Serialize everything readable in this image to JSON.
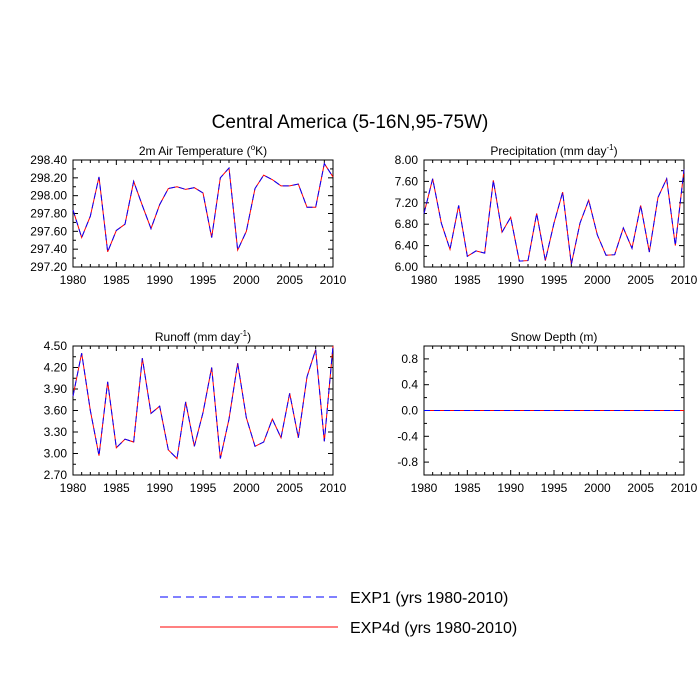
{
  "figure_title": "Central America (5-16N,95-75W)",
  "legend": [
    {
      "label": "EXP1 (yrs 1980-2010)",
      "color": "#0000ff",
      "dash": true
    },
    {
      "label": "EXP4d (yrs 1980-2010)",
      "color": "#ff0000",
      "dash": false
    }
  ],
  "chart_data": [
    {
      "type": "line",
      "title_main": "2m Air Temperature (",
      "title_sup": "o",
      "title_tail": "K)",
      "x": [
        1980,
        1981,
        1982,
        1983,
        1984,
        1985,
        1986,
        1987,
        1988,
        1989,
        1990,
        1991,
        1992,
        1993,
        1994,
        1995,
        1996,
        1997,
        1998,
        1999,
        2000,
        2001,
        2002,
        2003,
        2004,
        2005,
        2006,
        2007,
        2008,
        2009,
        2010
      ],
      "xlim": [
        1980,
        2010
      ],
      "xticks": [
        "1980",
        "1985",
        "1990",
        "1995",
        "2000",
        "2005",
        "2010"
      ],
      "ylim": [
        297.2,
        298.4
      ],
      "yticks": [
        "297.20",
        "297.40",
        "297.60",
        "297.80",
        "298.00",
        "298.20",
        "298.40"
      ],
      "series": [
        {
          "name": "EXP1 (yrs 1980-2010)",
          "values": [
            297.84,
            297.53,
            297.77,
            298.21,
            297.37,
            297.61,
            297.68,
            298.16,
            297.89,
            297.63,
            297.9,
            298.08,
            298.1,
            298.07,
            298.09,
            298.03,
            297.53,
            298.2,
            298.31,
            297.39,
            297.6,
            298.08,
            298.23,
            298.18,
            298.11,
            298.11,
            298.13,
            297.87,
            297.87,
            298.36,
            298.21
          ]
        },
        {
          "name": "EXP4d (yrs 1980-2010)",
          "values": [
            297.84,
            297.53,
            297.77,
            298.21,
            297.37,
            297.61,
            297.68,
            298.16,
            297.89,
            297.63,
            297.9,
            298.08,
            298.1,
            298.07,
            298.09,
            298.03,
            297.53,
            298.2,
            298.31,
            297.39,
            297.6,
            298.08,
            298.23,
            298.18,
            298.11,
            298.11,
            298.13,
            297.87,
            297.87,
            298.36,
            298.21
          ]
        }
      ]
    },
    {
      "type": "line",
      "title_main": "Precipitation (mm day",
      "title_sup": "-1",
      "title_tail": ")",
      "x": [
        1980,
        1981,
        1982,
        1983,
        1984,
        1985,
        1986,
        1987,
        1988,
        1989,
        1990,
        1991,
        1992,
        1993,
        1994,
        1995,
        1996,
        1997,
        1998,
        1999,
        2000,
        2001,
        2002,
        2003,
        2004,
        2005,
        2006,
        2007,
        2008,
        2009,
        2010
      ],
      "xlim": [
        1980,
        2010
      ],
      "xticks": [
        "1980",
        "1985",
        "1990",
        "1995",
        "2000",
        "2005",
        "2010"
      ],
      "ylim": [
        6.0,
        8.0
      ],
      "yticks": [
        "6.00",
        "6.40",
        "6.80",
        "7.20",
        "7.60",
        "8.00"
      ],
      "series": [
        {
          "name": "EXP1 (yrs 1980-2010)",
          "values": [
            7.0,
            7.65,
            6.82,
            6.33,
            7.15,
            6.2,
            6.3,
            6.26,
            7.62,
            6.65,
            6.93,
            6.11,
            6.12,
            7.0,
            6.12,
            6.82,
            7.4,
            6.05,
            6.82,
            7.25,
            6.6,
            6.22,
            6.23,
            6.73,
            6.35,
            7.15,
            6.28,
            7.3,
            7.65,
            6.4,
            7.82
          ]
        },
        {
          "name": "EXP4d (yrs 1980-2010)",
          "values": [
            7.0,
            7.65,
            6.82,
            6.33,
            7.15,
            6.2,
            6.3,
            6.26,
            7.62,
            6.65,
            6.93,
            6.11,
            6.12,
            7.0,
            6.12,
            6.82,
            7.4,
            6.05,
            6.82,
            7.25,
            6.6,
            6.22,
            6.23,
            6.73,
            6.35,
            7.15,
            6.28,
            7.3,
            7.65,
            6.4,
            7.82
          ]
        }
      ]
    },
    {
      "type": "line",
      "title_main": "Runoff (mm day",
      "title_sup": "-1",
      "title_tail": ")",
      "x": [
        1980,
        1981,
        1982,
        1983,
        1984,
        1985,
        1986,
        1987,
        1988,
        1989,
        1990,
        1991,
        1992,
        1993,
        1994,
        1995,
        1996,
        1997,
        1998,
        1999,
        2000,
        2001,
        2002,
        2003,
        2004,
        2005,
        2006,
        2007,
        2008,
        2009,
        2010
      ],
      "xlim": [
        1980,
        2010
      ],
      "xticks": [
        "1980",
        "1985",
        "1990",
        "1995",
        "2000",
        "2005",
        "2010"
      ],
      "ylim": [
        2.7,
        4.5
      ],
      "yticks": [
        "2.70",
        "3.00",
        "3.30",
        "3.60",
        "3.90",
        "4.20",
        "4.50"
      ],
      "series": [
        {
          "name": "EXP1 (yrs 1980-2010)",
          "values": [
            3.8,
            4.4,
            3.6,
            2.97,
            4.0,
            3.08,
            3.2,
            3.16,
            4.33,
            3.56,
            3.66,
            3.05,
            2.93,
            3.72,
            3.1,
            3.57,
            4.2,
            2.93,
            3.48,
            4.26,
            3.5,
            3.1,
            3.16,
            3.48,
            3.22,
            3.84,
            3.22,
            4.07,
            4.45,
            3.17,
            4.5
          ]
        },
        {
          "name": "EXP4d (yrs 1980-2010)",
          "values": [
            3.8,
            4.4,
            3.6,
            2.97,
            4.0,
            3.08,
            3.2,
            3.16,
            4.33,
            3.56,
            3.66,
            3.05,
            2.93,
            3.72,
            3.1,
            3.57,
            4.2,
            2.93,
            3.48,
            4.26,
            3.5,
            3.1,
            3.16,
            3.48,
            3.22,
            3.84,
            3.22,
            4.07,
            4.45,
            3.17,
            4.5
          ]
        }
      ]
    },
    {
      "type": "line",
      "title_main": "Snow Depth (m)",
      "title_sup": "",
      "title_tail": "",
      "x": [
        1980,
        1981,
        1982,
        1983,
        1984,
        1985,
        1986,
        1987,
        1988,
        1989,
        1990,
        1991,
        1992,
        1993,
        1994,
        1995,
        1996,
        1997,
        1998,
        1999,
        2000,
        2001,
        2002,
        2003,
        2004,
        2005,
        2006,
        2007,
        2008,
        2009,
        2010
      ],
      "xlim": [
        1980,
        2010
      ],
      "xticks": [
        "1980",
        "1985",
        "1990",
        "1995",
        "2000",
        "2005",
        "2010"
      ],
      "ylim": [
        -1.0,
        1.0
      ],
      "yticks": [
        "-0.8",
        "-0.4",
        "0.0",
        "0.4",
        "0.8"
      ],
      "ytick_values": [
        -0.8,
        -0.4,
        0.0,
        0.4,
        0.8
      ],
      "series": [
        {
          "name": "EXP1 (yrs 1980-2010)",
          "values": [
            0,
            0,
            0,
            0,
            0,
            0,
            0,
            0,
            0,
            0,
            0,
            0,
            0,
            0,
            0,
            0,
            0,
            0,
            0,
            0,
            0,
            0,
            0,
            0,
            0,
            0,
            0,
            0,
            0,
            0,
            0
          ]
        },
        {
          "name": "EXP4d (yrs 1980-2010)",
          "values": [
            0,
            0,
            0,
            0,
            0,
            0,
            0,
            0,
            0,
            0,
            0,
            0,
            0,
            0,
            0,
            0,
            0,
            0,
            0,
            0,
            0,
            0,
            0,
            0,
            0,
            0,
            0,
            0,
            0,
            0,
            0
          ]
        }
      ]
    }
  ]
}
